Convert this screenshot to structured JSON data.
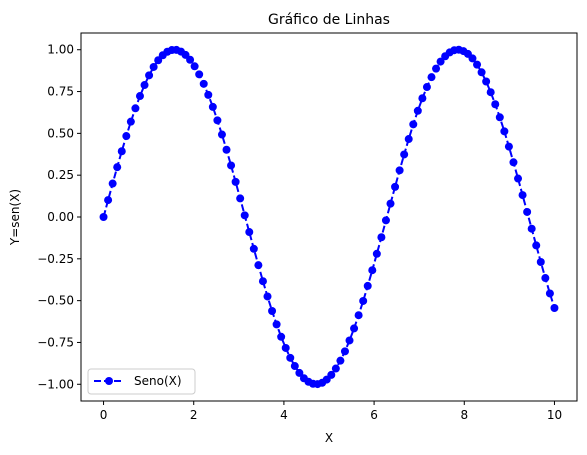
{
  "chart_data": {
    "type": "line",
    "title": "Gráfico de Linhas",
    "xlabel": "X",
    "ylabel": "Y=sen(X)",
    "xlim": [
      -0.5,
      10.5
    ],
    "ylim": [
      -1.1,
      1.1
    ],
    "xticks": [
      0,
      2,
      4,
      6,
      8,
      10
    ],
    "xtick_labels": [
      "0",
      "2",
      "4",
      "6",
      "8",
      "10"
    ],
    "yticks": [
      -1.0,
      -0.75,
      -0.5,
      -0.25,
      0.0,
      0.25,
      0.5,
      0.75,
      1.0
    ],
    "ytick_labels": [
      "−1.00",
      "−0.75",
      "−0.50",
      "−0.25",
      "0.00",
      "0.25",
      "0.50",
      "0.75",
      "1.00"
    ],
    "grid": false,
    "legend_position": "lower-left",
    "series": [
      {
        "name": "Seno(X)",
        "color": "#0000ff",
        "line_style": "dashed",
        "marker": "circle",
        "x": [
          0.0,
          0.101,
          0.202,
          0.303,
          0.404,
          0.505,
          0.606,
          0.707,
          0.808,
          0.909,
          1.01,
          1.111,
          1.212,
          1.313,
          1.414,
          1.515,
          1.616,
          1.717,
          1.818,
          1.919,
          2.02,
          2.121,
          2.222,
          2.323,
          2.424,
          2.525,
          2.626,
          2.727,
          2.828,
          2.929,
          3.03,
          3.131,
          3.232,
          3.333,
          3.434,
          3.535,
          3.636,
          3.737,
          3.838,
          3.939,
          4.04,
          4.141,
          4.242,
          4.343,
          4.444,
          4.545,
          4.646,
          4.747,
          4.848,
          4.949,
          5.051,
          5.152,
          5.253,
          5.354,
          5.455,
          5.556,
          5.657,
          5.758,
          5.859,
          5.96,
          6.061,
          6.162,
          6.263,
          6.364,
          6.465,
          6.566,
          6.667,
          6.768,
          6.869,
          6.97,
          7.071,
          7.172,
          7.273,
          7.374,
          7.475,
          7.576,
          7.677,
          7.778,
          7.879,
          7.98,
          8.081,
          8.182,
          8.283,
          8.384,
          8.485,
          8.586,
          8.687,
          8.788,
          8.889,
          8.99,
          9.091,
          9.192,
          9.293,
          9.394,
          9.495,
          9.596,
          9.697,
          9.798,
          9.899,
          10.0
        ],
        "y": [
          0.0,
          0.101,
          0.2,
          0.298,
          0.393,
          0.484,
          0.57,
          0.65,
          0.723,
          0.789,
          0.847,
          0.897,
          0.937,
          0.967,
          0.988,
          0.998,
          0.999,
          0.989,
          0.969,
          0.94,
          0.901,
          0.853,
          0.796,
          0.73,
          0.658,
          0.578,
          0.493,
          0.402,
          0.308,
          0.21,
          0.111,
          0.01,
          -0.09,
          -0.19,
          -0.288,
          -0.384,
          -0.475,
          -0.562,
          -0.642,
          -0.716,
          -0.783,
          -0.842,
          -0.891,
          -0.932,
          -0.964,
          -0.985,
          -0.997,
          -0.999,
          -0.991,
          -0.972,
          -0.944,
          -0.906,
          -0.859,
          -0.803,
          -0.738,
          -0.666,
          -0.587,
          -0.502,
          -0.412,
          -0.318,
          -0.22,
          -0.121,
          -0.02,
          0.08,
          0.18,
          0.279,
          0.374,
          0.466,
          0.554,
          0.635,
          0.71,
          0.777,
          0.836,
          0.887,
          0.929,
          0.961,
          0.984,
          0.997,
          1.0,
          0.992,
          0.975,
          0.948,
          0.911,
          0.865,
          0.81,
          0.746,
          0.674,
          0.596,
          0.512,
          0.421,
          0.327,
          0.23,
          0.131,
          0.03,
          -0.07,
          -0.17,
          -0.269,
          -0.365,
          -0.457,
          -0.544
        ]
      }
    ]
  }
}
